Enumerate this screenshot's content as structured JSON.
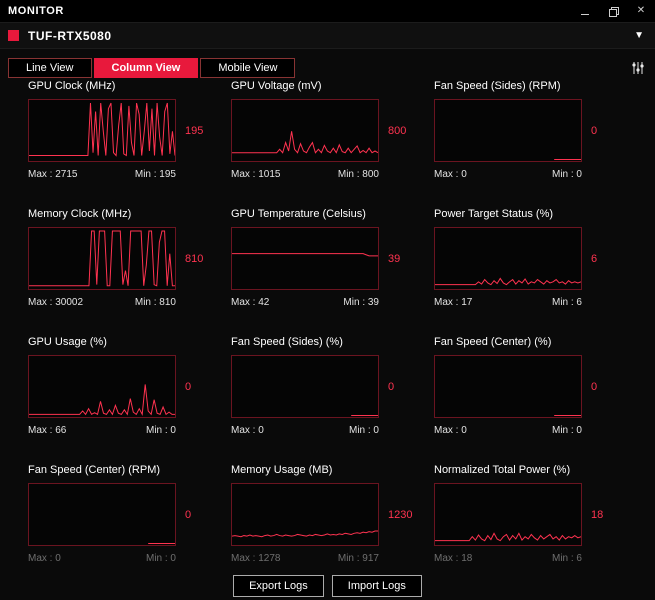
{
  "window": {
    "title": "MONITOR"
  },
  "device_bar": {
    "name": "TUF-RTX5080"
  },
  "tabs": [
    {
      "label": "Line View"
    },
    {
      "label": "Column View"
    },
    {
      "label": "Mobile View"
    }
  ],
  "colors": {
    "accent": "#e8193c",
    "spark": "#ff3350",
    "chart_border": "#6b1420"
  },
  "footer": {
    "export_label": "Export Logs",
    "import_label": "Import Logs"
  },
  "panels": [
    {
      "title": "GPU Clock (MHz)",
      "current": "195",
      "max_label": "Max : 2715",
      "min_label": "Min : 195",
      "points": [
        0.07,
        0.07,
        0.07,
        0.07,
        0.07,
        0.07,
        0.07,
        0.07,
        0.07,
        0.07,
        0.07,
        0.07,
        0.07,
        0.07,
        0.07,
        0.07,
        0.07,
        0.07,
        0.07,
        0.07,
        0.07,
        0.07,
        0.07,
        0.07,
        1,
        0.12,
        0.85,
        0.07,
        1,
        0.5,
        0.07,
        0.9,
        1,
        0.12,
        0.07,
        0.6,
        1,
        0.1,
        0.07,
        0.95,
        0.3,
        0.07,
        1,
        0.8,
        0.07,
        0.5,
        1,
        0.15,
        0.9,
        0.07,
        1,
        0.4,
        0.07,
        0.85,
        1,
        0.1,
        0.5,
        0.07
      ]
    },
    {
      "title": "GPU Voltage (mV)",
      "current": "800",
      "max_label": "Max : 1015",
      "min_label": "Min : 800",
      "points": [
        0.12,
        0.12,
        0.12,
        0.12,
        0.12,
        0.12,
        0.12,
        0.12,
        0.12,
        0.12,
        0.12,
        0.12,
        0.12,
        0.12,
        0.12,
        0.12,
        0.18,
        0.12,
        0.3,
        0.15,
        0.5,
        0.18,
        0.12,
        0.28,
        0.15,
        0.12,
        0.22,
        0.3,
        0.12,
        0.18,
        0.12,
        0.25,
        0.15,
        0.12,
        0.2,
        0.12,
        0.26,
        0.14,
        0.12,
        0.2,
        0.12,
        0.18,
        0.24,
        0.12,
        0.16,
        0.12,
        0.2,
        0.12,
        0.15,
        0.12
      ]
    },
    {
      "title": "Fan Speed (Sides) (RPM)",
      "current": "0",
      "max_label": "Max : 0",
      "min_label": "Min : 0",
      "points": [
        null,
        null,
        null,
        null,
        null,
        null,
        null,
        null,
        null,
        null,
        null,
        null,
        null,
        null,
        null,
        null,
        null,
        null,
        null,
        null,
        null,
        null,
        null,
        null,
        null,
        null,
        null,
        null,
        null,
        null,
        null,
        null,
        null,
        null,
        null,
        null,
        null,
        null,
        null,
        null,
        0,
        0,
        0,
        0,
        0,
        0,
        0,
        0,
        0,
        0
      ]
    },
    {
      "title": "Memory Clock (MHz)",
      "current": "810",
      "max_label": "Max : 30002",
      "min_label": "Min : 810",
      "points": [
        0.03,
        0.03,
        0.03,
        0.03,
        0.03,
        0.03,
        0.03,
        0.03,
        0.03,
        0.03,
        0.03,
        0.03,
        0.03,
        0.03,
        0.03,
        0.03,
        0.03,
        0.03,
        0.03,
        0.03,
        0.03,
        0.03,
        0.03,
        0.03,
        1,
        1,
        0.05,
        1,
        1,
        1,
        0.03,
        0.03,
        1,
        1,
        1,
        1,
        0.05,
        0.3,
        0.03,
        1,
        1,
        1,
        1,
        1,
        0.03,
        0.4,
        1,
        1,
        0.05,
        0.03,
        0.8,
        1,
        1,
        0.03,
        0.6,
        0.03,
        0.03
      ]
    },
    {
      "title": "GPU Temperature (Celsius)",
      "current": "39",
      "max_label": "Max : 42",
      "min_label": "Min : 39",
      "points": [
        0.6,
        0.6,
        0.6,
        0.6,
        0.6,
        0.6,
        0.6,
        0.6,
        0.6,
        0.6,
        0.6,
        0.6,
        0.6,
        0.6,
        0.6,
        0.6,
        0.6,
        0.6,
        0.6,
        0.6,
        0.6,
        0.6,
        0.6,
        0.6,
        0.6,
        0.6,
        0.6,
        0.6,
        0.6,
        0.6,
        0.6,
        0.6,
        0.6,
        0.6,
        0.6,
        0.6,
        0.6,
        0.6,
        0.6,
        0.6,
        0.6,
        0.6,
        0.6,
        0.6,
        0.6,
        0.58,
        0.56,
        0.56,
        0.56,
        0.56
      ]
    },
    {
      "title": "Power Target Status (%)",
      "current": "6",
      "max_label": "Max : 17",
      "min_label": "Min : 6",
      "points": [
        0.05,
        0.05,
        0.05,
        0.05,
        0.05,
        0.05,
        0.05,
        0.05,
        0.05,
        0.05,
        0.05,
        0.05,
        0.05,
        0.05,
        0.1,
        0.06,
        0.14,
        0.08,
        0.05,
        0.12,
        0.07,
        0.16,
        0.08,
        0.05,
        0.1,
        0.14,
        0.06,
        0.12,
        0.08,
        0.15,
        0.06,
        0.1,
        0.08,
        0.14,
        0.1,
        0.06,
        0.12,
        0.08,
        0.1,
        0.14,
        0.08,
        0.1,
        0.06,
        0.12,
        0.08,
        0.1,
        0.08,
        0.1
      ]
    },
    {
      "title": "GPU Usage (%)",
      "current": "0",
      "max_label": "Max : 66",
      "min_label": "Min : 0",
      "points": [
        0.02,
        0.02,
        0.02,
        0.02,
        0.02,
        0.02,
        0.02,
        0.02,
        0.02,
        0.02,
        0.02,
        0.02,
        0.02,
        0.02,
        0.02,
        0.02,
        0.02,
        0.02,
        0.08,
        0.02,
        0.12,
        0.02,
        0.05,
        0.02,
        0.25,
        0.04,
        0.02,
        0.1,
        0.02,
        0.18,
        0.04,
        0.02,
        0.1,
        0.02,
        0.3,
        0.06,
        0.02,
        0.12,
        0.02,
        0.55,
        0.08,
        0.02,
        0.28,
        0.04,
        0.02,
        0.15,
        0.02,
        0.06,
        0.02,
        0.02
      ]
    },
    {
      "title": "Fan Speed (Sides) (%)",
      "current": "0",
      "max_label": "Max : 0",
      "min_label": "Min : 0",
      "points": [
        null,
        null,
        null,
        null,
        null,
        null,
        null,
        null,
        null,
        null,
        null,
        null,
        null,
        null,
        null,
        null,
        null,
        null,
        null,
        null,
        null,
        null,
        null,
        null,
        null,
        null,
        null,
        null,
        null,
        null,
        null,
        null,
        null,
        null,
        null,
        null,
        null,
        null,
        null,
        null,
        0,
        0,
        0,
        0,
        0,
        0,
        0,
        0,
        0,
        0
      ]
    },
    {
      "title": "Fan Speed (Center) (%)",
      "current": "0",
      "max_label": "Max : 0",
      "min_label": "Min : 0",
      "points": [
        null,
        null,
        null,
        null,
        null,
        null,
        null,
        null,
        null,
        null,
        null,
        null,
        null,
        null,
        null,
        null,
        null,
        null,
        null,
        null,
        null,
        null,
        null,
        null,
        null,
        null,
        null,
        null,
        null,
        null,
        null,
        null,
        null,
        null,
        null,
        null,
        null,
        null,
        null,
        null,
        0,
        0,
        0,
        0,
        0,
        0,
        0,
        0,
        0,
        0
      ]
    },
    {
      "title": "Fan Speed (Center) (RPM)",
      "current": "0",
      "max_label": "Max : 0",
      "min_label": "Min : 0",
      "points": [
        null,
        null,
        null,
        null,
        null,
        null,
        null,
        null,
        null,
        null,
        null,
        null,
        null,
        null,
        null,
        null,
        null,
        null,
        null,
        null,
        null,
        null,
        null,
        null,
        null,
        null,
        null,
        null,
        null,
        null,
        null,
        null,
        null,
        null,
        null,
        null,
        null,
        null,
        null,
        null,
        0,
        0,
        0,
        0,
        0,
        0,
        0,
        0,
        0,
        0
      ]
    },
    {
      "title": "Memory Usage (MB)",
      "current": "1230",
      "max_label": "Max : 1278",
      "min_label": "Min : 917",
      "points": [
        0.13,
        0.14,
        0.13,
        0.12,
        0.14,
        0.13,
        0.15,
        0.13,
        0.14,
        0.13,
        0.12,
        0.14,
        0.15,
        0.13,
        0.14,
        0.16,
        0.14,
        0.13,
        0.15,
        0.14,
        0.13,
        0.14,
        0.16,
        0.15,
        0.14,
        0.13,
        0.15,
        0.14,
        0.16,
        0.15,
        0.14,
        0.15,
        0.17,
        0.15,
        0.16,
        0.15,
        0.17,
        0.16,
        0.18,
        0.17,
        0.16,
        0.18,
        0.19,
        0.18,
        0.2,
        0.19,
        0.21,
        0.2,
        0.22,
        0.22
      ]
    },
    {
      "title": "Normalized Total Power (%)",
      "current": "18",
      "max_label": "Max : 18",
      "min_label": "Min : 6",
      "points": [
        0.05,
        0.05,
        0.05,
        0.05,
        0.05,
        0.05,
        0.05,
        0.05,
        0.05,
        0.05,
        0.05,
        0.05,
        0.12,
        0.06,
        0.15,
        0.08,
        0.05,
        0.14,
        0.07,
        0.18,
        0.08,
        0.05,
        0.12,
        0.16,
        0.06,
        0.14,
        0.08,
        0.18,
        0.06,
        0.12,
        0.08,
        0.16,
        0.1,
        0.06,
        0.14,
        0.08,
        0.12,
        0.16,
        0.08,
        0.12,
        0.06,
        0.14,
        0.08,
        0.12,
        0.1,
        0.14,
        0.1,
        0.12
      ]
    }
  ]
}
